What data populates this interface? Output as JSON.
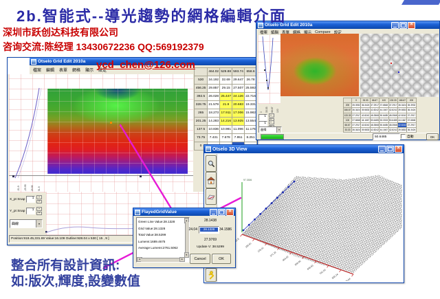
{
  "slide": {
    "title": "2b.智能式--導光趨勢的網格編輯介面",
    "company": "深圳市跃创达科技有限公司",
    "contact": "咨询交流:陈经理  13430672236    QQ:569192379",
    "email": "ycd_chen@126.com",
    "note_line1": "整合所有設計資訊:",
    "note_line2": "如:版次,輝度,設變數值",
    "accent_colors": {
      "title_blue": "#2a2aa6",
      "red": "#c80000",
      "magenta": "#e61ad6",
      "note_blue": "#33419e"
    }
  },
  "main_window": {
    "title": "Otselo Grid Edit 2010a",
    "menu": [
      "檔案",
      "編輯",
      "表單",
      "網格",
      "顯示",
      "設定"
    ],
    "left_axis_ticks": [
      "-51.9",
      "-25.95",
      "25.95",
      "51.9"
    ],
    "table": {
      "col_headers": [
        "464.02",
        "529.88",
        "593.74",
        "658.6"
      ],
      "rows": [
        {
          "label": "530",
          "values": [
            "34.192",
            "32.69",
            "29.647",
            "26.78"
          ]
        },
        {
          "label": "456.25",
          "values": [
            "29.857",
            "29.15",
            "27.507",
            "25.592"
          ]
        },
        {
          "label": "392.5",
          "values": [
            "26.028",
            "25.447",
            "24.126",
            "22.716"
          ]
        },
        {
          "label": "328.75",
          "values": [
            "21.579",
            "21.9",
            "20.683",
            "19.331"
          ]
        },
        {
          "label": "265",
          "values": [
            "18.273",
            "17.911",
            "17.006",
            "15.982"
          ]
        },
        {
          "label": "201.25",
          "values": [
            "14.283",
            "14.216",
            "13.925",
            "13.554"
          ]
        },
        {
          "label": "137.5",
          "values": [
            "10.836",
            "10.981",
            "11.096",
            "11.176"
          ]
        },
        {
          "label": "73.75",
          "values": [
            "7.431",
            "7.678",
            "7.951",
            "8.251"
          ]
        },
        {
          "label": "0",
          "values": [
            "3.94",
            "4.22",
            "4.577",
            "5.026"
          ]
        }
      ],
      "yellow_cells": [
        [
          2,
          1
        ],
        [
          2,
          2
        ],
        [
          3,
          1
        ],
        [
          3,
          2
        ],
        [
          4,
          1
        ],
        [
          4,
          2
        ],
        [
          5,
          1
        ],
        [
          5,
          2
        ]
      ],
      "selected_cell": [
        8,
        2
      ]
    },
    "snap": {
      "x_label": "X_pt Snap",
      "x_value": "1",
      "y_label": "Y_pt Snap",
      "y_value": "1",
      "curve_value": "曲線"
    },
    "status": "Position:919.45,331.69 Value:16.109 Outline:928.04 x 530 [ 15 , 9 ]"
  },
  "compare_window": {
    "title": "Otselo Grid Edit 2010a",
    "menu": [
      "檔案",
      "編輯",
      "表單",
      "網格",
      "顯示",
      "Compare",
      "設定"
    ],
    "strip_axis_ticks": [
      "0",
      "33.33",
      "66.67",
      "100"
    ],
    "snap": {
      "x_value": "1",
      "y_value": "1",
      "curve_value": "曲線"
    },
    "table": {
      "col_headers": [
        "0",
        "33.33",
        "66.67",
        "100",
        "133.33",
        "166.67",
        "200"
      ],
      "rows": [
        {
          "label": "200",
          "values": [
            "35.3932",
            "36.3424",
            "37.2917",
            "37.6848",
            "37.2917",
            "36.3424",
            "35.3932"
          ]
        },
        {
          "label": "166.67",
          "values": [
            "36.3424",
            "39.5833",
            "42.8242",
            "44.1667",
            "42.8242",
            "39.5833",
            "36.3424"
          ]
        },
        {
          "label": "133.33",
          "values": [
            "37.2917",
            "42.8242",
            "48.3568",
            "50.6485",
            "48.3568",
            "42.8242",
            "37.2917"
          ]
        },
        {
          "label": "100",
          "values": [
            "37.6848",
            "44.1667",
            "50.6485",
            "53.3333",
            "50.6485",
            "44.1667",
            "37.6848"
          ]
        },
        {
          "label": "66.67",
          "values": [
            "37.2917",
            "42.8242",
            "48.3568",
            "50.6485",
            "48.3568",
            "42.8242",
            "37.2917"
          ]
        },
        {
          "label": "33.33",
          "values": [
            "36.3424",
            "39.5833",
            "42.8242",
            "44.1667",
            "42.8242",
            "39.5833",
            "36.3424"
          ]
        },
        {
          "label": "0",
          "values": [
            "35.3932",
            "36.3424",
            "37.2917",
            "37.6848",
            "37.2917",
            "36.3424",
            "35.3932"
          ]
        }
      ],
      "selected_cell": [
        4,
        5
      ]
    },
    "status_value": "50.6485",
    "auto_label": "自動",
    "ok_label": "OK"
  },
  "view3d_window": {
    "title": "Otselo 3D View",
    "x_axis_ticks": [
      "92.8",
      "185.61",
      "278.41",
      "371.22",
      "464.02",
      "556.82",
      "649.63",
      "742.43",
      "835.24",
      "928.04"
    ],
    "z_axis_label": "97.3306",
    "toolbar_icons": [
      "zoom",
      "home",
      "axes",
      "user"
    ]
  },
  "dialog": {
    "title": "FlayedGridValue",
    "list_items": [
      "Green Line Value:28.1328",
      "Grid Value:28.1328",
      "Total Value:38.5299",
      "Lumens:1689.4675",
      "Average Lumens:2761.5062"
    ],
    "top_value": "28.1438",
    "left_value": "24.04",
    "edit_value": "28.1328",
    "right_value": "34.1586",
    "bottom_value": "27.9769",
    "update_label": "Update V: 38.5299",
    "cancel_label": "Cancel",
    "ok_label": "OK"
  }
}
